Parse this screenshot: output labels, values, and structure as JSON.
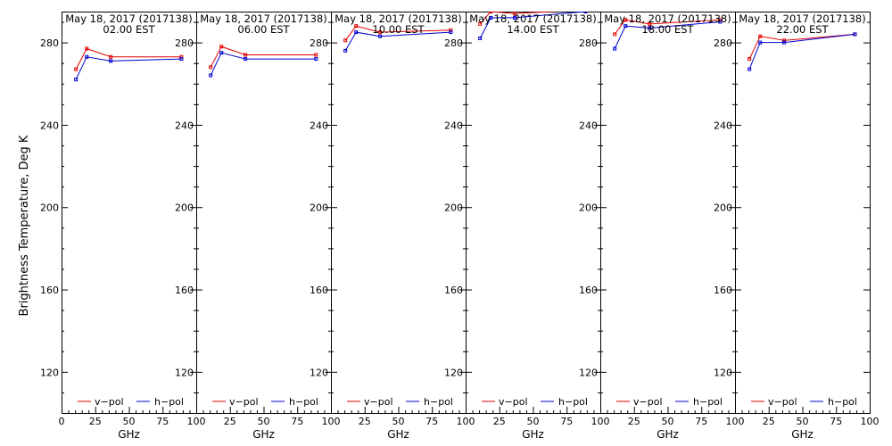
{
  "colors": {
    "v_pol": "#e00000",
    "h_pol": "#0000d0",
    "axis": "#000000"
  },
  "chart_data": {
    "type": "line",
    "ylabel": "Brightness Temperature, Deg K",
    "xlabel": "GHz",
    "xlim": [
      0,
      100
    ],
    "ylim": [
      100,
      295
    ],
    "xticks": [
      0,
      25,
      50,
      75,
      100
    ],
    "xtick_labels_first": [
      "0",
      "25",
      "50",
      "75",
      "100"
    ],
    "xtick_labels_rest": [
      "",
      "25",
      "50",
      "75",
      "100"
    ],
    "yticks": [
      120,
      160,
      200,
      240,
      280
    ],
    "ytick_labels": [
      "120",
      "160",
      "200",
      "240",
      "280"
    ],
    "legend_placement": "bottom",
    "legend": {
      "v": "v−pol",
      "h": "h−pol"
    },
    "panels": [
      {
        "date": "May 18, 2017 (2017138)",
        "time": "02.00 EST",
        "x": [
          10.7,
          18.7,
          36.5,
          89
        ],
        "v_pol": [
          267,
          277,
          273,
          273
        ],
        "h_pol": [
          262,
          273,
          271,
          272
        ]
      },
      {
        "date": "May 18, 2017 (2017138)",
        "time": "06.00 EST",
        "x": [
          10.7,
          18.7,
          36.5,
          89
        ],
        "v_pol": [
          268,
          278,
          274,
          274
        ],
        "h_pol": [
          264,
          275,
          272,
          272
        ]
      },
      {
        "date": "May 18, 2017 (2017138)",
        "time": "10.00 EST",
        "x": [
          10.7,
          18.7,
          36.5,
          89
        ],
        "v_pol": [
          281,
          288,
          285,
          286
        ],
        "h_pol": [
          276,
          285,
          283,
          285
        ]
      },
      {
        "date": "May 18, 2017 (2017138)",
        "time": "14.00 EST",
        "x": [
          10.7,
          18.7,
          36.5,
          89
        ],
        "v_pol": [
          289,
          295,
          294,
          296
        ],
        "h_pol": [
          282,
          292,
          292,
          295
        ]
      },
      {
        "date": "May 18, 2017 (2017138)",
        "time": "18.00 EST",
        "x": [
          10.7,
          18.7,
          36.5,
          89
        ],
        "v_pol": [
          284,
          291,
          289,
          291
        ],
        "h_pol": [
          277,
          288,
          287,
          290
        ]
      },
      {
        "date": "May 18, 2017 (2017138)",
        "time": "22.00 EST",
        "x": [
          10.7,
          18.7,
          36.5,
          89
        ],
        "v_pol": [
          272,
          283,
          281,
          284
        ],
        "h_pol": [
          267,
          280,
          280,
          284
        ]
      }
    ]
  }
}
